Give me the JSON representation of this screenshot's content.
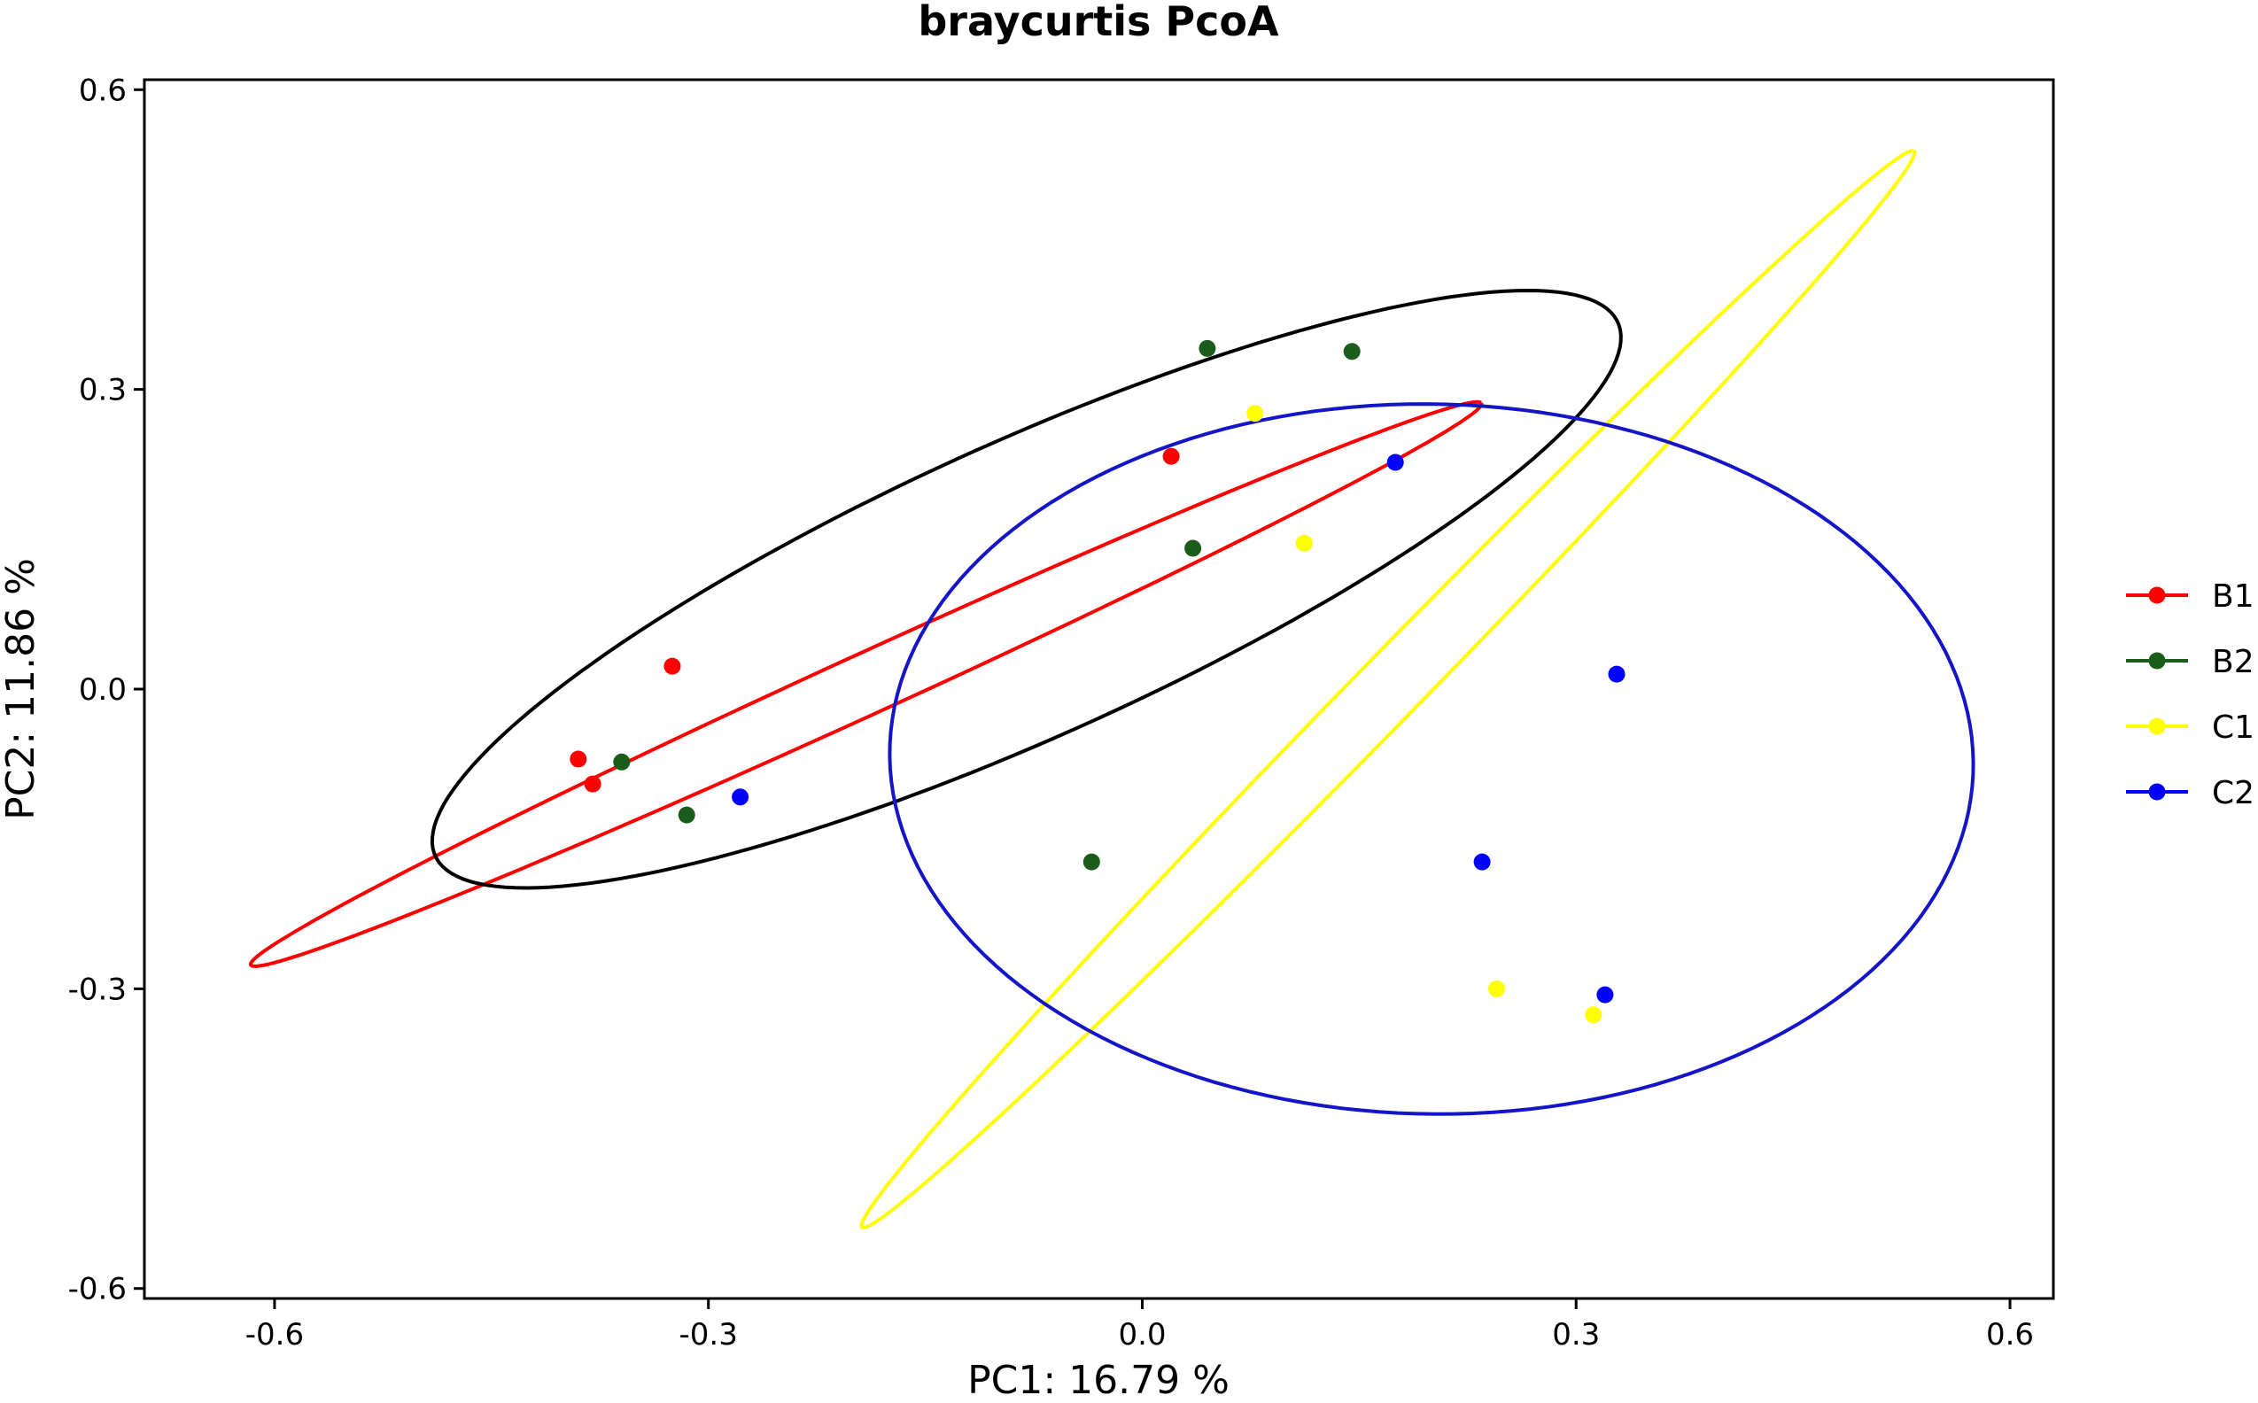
{
  "chart_data": {
    "type": "scatter",
    "title": "braycurtis PcoA",
    "xlabel": "PC1:  16.79 %",
    "ylabel": "PC2:  11.86 %",
    "xlim": [
      -0.69,
      0.63
    ],
    "ylim": [
      -0.61,
      0.61
    ],
    "xticks": [
      -0.6,
      -0.3,
      0.0,
      0.3,
      0.6
    ],
    "xtick_labels": [
      "-0.6",
      "-0.3",
      "0.0",
      "0.3",
      "0.6"
    ],
    "yticks": [
      -0.6,
      -0.3,
      0.0,
      0.3,
      0.6
    ],
    "ytick_labels": [
      "-0.6",
      "-0.3",
      "0.0",
      "0.3",
      "0.6"
    ],
    "grid": false,
    "legend_position": "right",
    "series": [
      {
        "name": "B1",
        "color": "#ff0000",
        "points": [
          [
            -0.39,
            -0.07
          ],
          [
            -0.38,
            -0.095
          ],
          [
            -0.325,
            0.023
          ],
          [
            0.02,
            0.233
          ]
        ],
        "ellipse": {
          "cx": -0.191,
          "cy": 0.005,
          "rx": 0.51,
          "ry": 0.028,
          "angle_deg": 33.5
        }
      },
      {
        "name": "B2",
        "color": "#1a5c1a",
        "points": [
          [
            -0.36,
            -0.073
          ],
          [
            -0.315,
            -0.126
          ],
          [
            -0.035,
            -0.173
          ],
          [
            0.035,
            0.141
          ],
          [
            0.045,
            0.341
          ],
          [
            0.145,
            0.338
          ]
        ],
        "ellipse": {
          "cx": -0.08,
          "cy": 0.1,
          "rx": 0.49,
          "ry": 0.135,
          "angle_deg": 34.5
        }
      },
      {
        "name": "C1",
        "color": "#ffff00",
        "points": [
          [
            0.078,
            0.276
          ],
          [
            0.112,
            0.146
          ],
          [
            0.245,
            -0.3
          ],
          [
            0.312,
            -0.326
          ]
        ],
        "ellipse": {
          "cx": 0.17,
          "cy": 0.0,
          "rx": 0.65,
          "ry": 0.026,
          "angle_deg": 56.0
        }
      },
      {
        "name": "C2",
        "color": "#0000ff",
        "points": [
          [
            -0.278,
            -0.108
          ],
          [
            0.175,
            0.227
          ],
          [
            0.328,
            0.015
          ],
          [
            0.235,
            -0.173
          ],
          [
            0.32,
            -0.306
          ]
        ],
        "ellipse": {
          "cx": 0.2,
          "cy": -0.07,
          "rx": 0.375,
          "ry": 0.355,
          "angle_deg": -8.0
        }
      }
    ]
  }
}
